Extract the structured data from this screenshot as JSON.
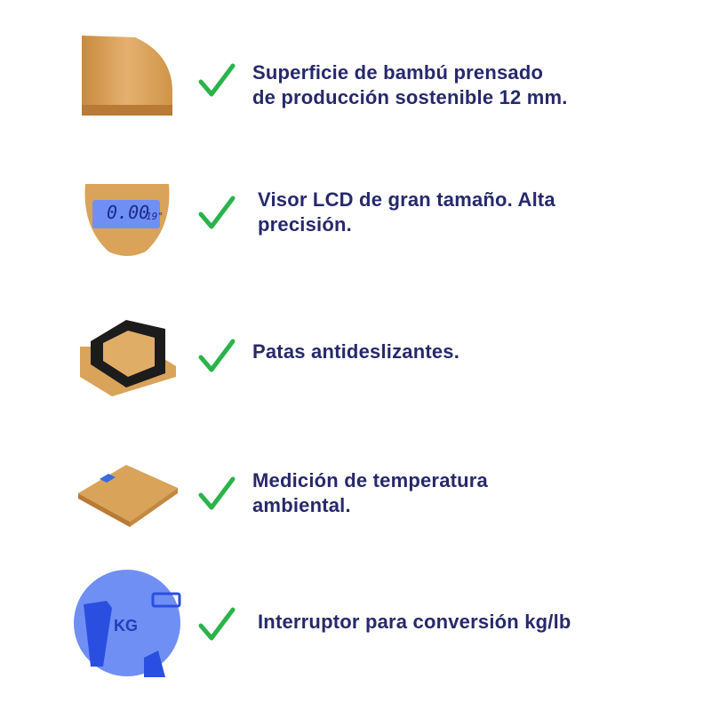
{
  "colors": {
    "text": "#27296b",
    "check": "#2bb34a",
    "bamboo": "#d9a35a",
    "lcd": "#6f8ff5"
  },
  "features": [
    {
      "icon": "check-icon",
      "image": "bamboo-corner",
      "lines": [
        "Superficie de bambú prensado",
        "de producción sostenible 12 mm."
      ]
    },
    {
      "icon": "check-icon",
      "image": "lcd-display",
      "lines": [
        "Visor LCD de gran tamaño. Alta",
        "precisión."
      ],
      "lcd_value": "0.00",
      "lcd_temp": "19°"
    },
    {
      "icon": "check-icon",
      "image": "non-slip-feet",
      "lines": [
        "Patas antideslizantes."
      ]
    },
    {
      "icon": "check-icon",
      "image": "scale-top",
      "lines": [
        "Medición de temperatura",
        "ambiental."
      ]
    },
    {
      "icon": "check-icon",
      "image": "unit-switch",
      "lines": [
        "Interruptor para conversión kg/lb"
      ],
      "lcd_unit": "KG"
    }
  ]
}
